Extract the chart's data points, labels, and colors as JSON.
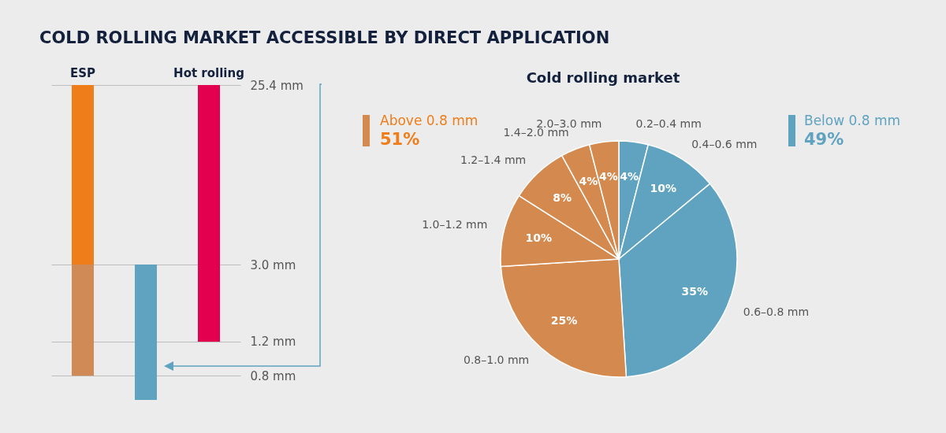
{
  "chart_data": [
    {
      "type": "bar",
      "title": "COLD ROLLING MARKET ACCESSIBLE BY DIRECT APPLICATION",
      "categories": [
        "ESP",
        null,
        "Hot rolling"
      ],
      "series": [
        {
          "colors": [
            "#cf8a55",
            "#5fa3c0",
            null
          ],
          "base": [
            0.8,
            0.6,
            null
          ],
          "values": [
            2.2,
            2.4,
            null
          ]
        },
        {
          "colors": [
            "#ee7d1a",
            null,
            "#e2004f"
          ],
          "base": [
            3.0,
            null,
            1.2
          ],
          "values": [
            22.4,
            null,
            24.2
          ]
        }
      ],
      "ylim": [
        0.6,
        25.4
      ],
      "yticks": [
        {
          "value": 0.8,
          "label": "0.8 mm"
        },
        {
          "value": 1.2,
          "label": "1.2 mm"
        },
        {
          "value": 3.0,
          "label": "3.0 mm"
        },
        {
          "value": 25.4,
          "label": "25.4 mm"
        }
      ],
      "log": "y",
      "grid": "y"
    },
    {
      "type": "pie",
      "title": "Cold rolling market",
      "categories": [
        "0.2–0.4 mm",
        "0.4–0.6 mm",
        "0.6–0.8 mm",
        "0.8–1.0 mm",
        "1.0–1.2 mm",
        "1.2–1.4 mm",
        "1.4–2.0 mm",
        "2.0–3.0 mm"
      ],
      "values": [
        4,
        10,
        35,
        25,
        10,
        8,
        4,
        4
      ],
      "colors": [
        "#5fa3c0",
        "#5fa3c0",
        "#5fa3c0",
        "#d4894e",
        "#d4894e",
        "#d4894e",
        "#d4894e",
        "#d4894e"
      ],
      "value_labels": [
        "4%",
        "10%",
        "35%",
        "25%",
        "10%",
        "8%",
        "4%",
        "4%"
      ],
      "annotations": [
        "Above 0.8 mm",
        "51%",
        "Below 0.8 mm",
        "49%"
      ]
    }
  ]
}
